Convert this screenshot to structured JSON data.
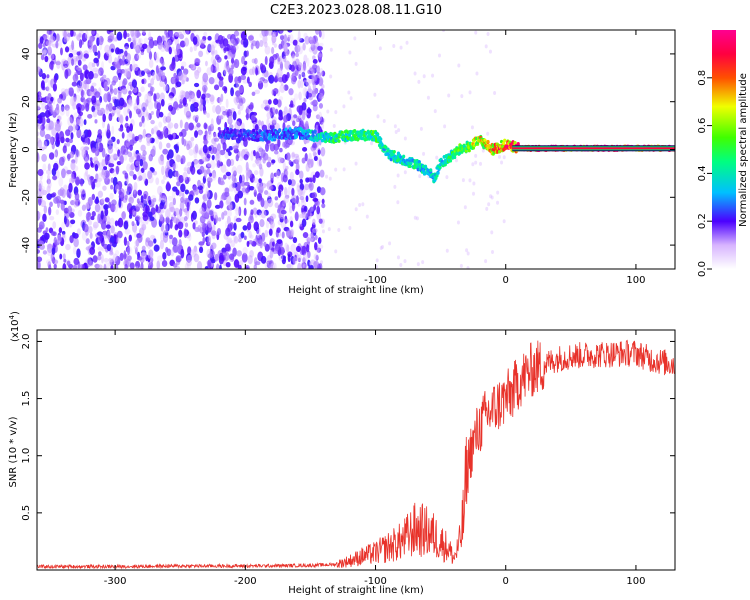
{
  "title": "C2E3.2023.028.08.11.G10",
  "chart_data": [
    {
      "type": "heatmap",
      "xlabel": "Height of straight line (km)",
      "ylabel": "Frequency (Hz)",
      "xlim": [
        -360,
        130
      ],
      "ylim": [
        -50,
        50
      ],
      "x_ticks": [
        -300,
        -200,
        -100,
        0,
        100
      ],
      "y_ticks": [
        -40,
        -20,
        0,
        20,
        40
      ],
      "x_tick_labels": [
        "-300",
        "-200",
        "-100",
        "0",
        "100"
      ],
      "y_tick_labels": [
        "-40",
        "-20",
        "0",
        "20",
        "40"
      ],
      "colorbar": {
        "label": "Normalized spectral amplitude",
        "range": [
          0,
          1
        ],
        "ticks": [
          0.0,
          0.2,
          0.4,
          0.6,
          0.8
        ],
        "tick_labels": [
          "0.0",
          "0.2",
          "0.4",
          "0.6",
          "0.8"
        ]
      },
      "ridge": {
        "x": [
          -220,
          -200,
          -180,
          -160,
          -150,
          -140,
          -130,
          -120,
          -110,
          -100,
          -95,
          -90,
          -80,
          -70,
          -60,
          -55,
          -50,
          -45,
          -40,
          -35,
          -30,
          -25,
          -20,
          -15,
          -10,
          -5,
          0,
          10,
          50,
          100,
          130
        ],
        "y": [
          7,
          6,
          6,
          7,
          6,
          5,
          5,
          6,
          6,
          6,
          2,
          -2,
          -4,
          -6,
          -9,
          -12,
          -6,
          -4,
          -2,
          0,
          1,
          2,
          4,
          2,
          0,
          1,
          2,
          0.5,
          0.5,
          0.5,
          0.5
        ],
        "amplitude": [
          0.25,
          0.25,
          0.3,
          0.3,
          0.4,
          0.45,
          0.5,
          0.5,
          0.5,
          0.55,
          0.45,
          0.45,
          0.45,
          0.45,
          0.4,
          0.4,
          0.45,
          0.5,
          0.55,
          0.6,
          0.65,
          0.7,
          0.75,
          0.75,
          0.8,
          0.85,
          0.9,
          0.95,
          1.0,
          1.0,
          1.0
        ]
      },
      "noise_region_x": [
        -360,
        -150
      ]
    },
    {
      "type": "line",
      "xlabel": "Height of straight line (km)",
      "ylabel": "SNR (10 * v/v)",
      "y_multiplier_label": "(x10",
      "y_multiplier_exp": "4",
      "y_multiplier_close": ")",
      "xlim": [
        -360,
        130
      ],
      "ylim": [
        0,
        21000
      ],
      "x_ticks": [
        -300,
        -200,
        -100,
        0,
        100
      ],
      "y_ticks": [
        5000,
        10000,
        15000,
        20000
      ],
      "x_tick_labels": [
        "-300",
        "-200",
        "-100",
        "0",
        "100"
      ],
      "y_tick_labels": [
        "0.5",
        "1.0",
        "1.5",
        "2.0"
      ],
      "color": "#e8322a",
      "series": [
        {
          "x": [
            -360,
            -300,
            -250,
            -200,
            -150,
            -130,
            -120,
            -110,
            -100,
            -90,
            -80,
            -75,
            -70,
            -65,
            -60,
            -55,
            -50,
            -45,
            -42,
            -40,
            -38,
            -35,
            -32,
            -30,
            -28,
            -25,
            -22,
            -20,
            -15,
            -10,
            -5,
            0,
            5,
            10,
            20,
            30,
            40,
            50,
            60,
            80,
            100,
            110,
            120,
            130
          ],
          "y": [
            300,
            300,
            350,
            350,
            400,
            500,
            800,
            1200,
            1500,
            2000,
            2500,
            3000,
            3500,
            3500,
            3300,
            3000,
            2500,
            2000,
            1500,
            1000,
            1500,
            2500,
            5000,
            8000,
            10000,
            11000,
            12000,
            12500,
            13500,
            14000,
            14500,
            15000,
            15500,
            16500,
            17500,
            18000,
            18500,
            18700,
            18800,
            18900,
            19000,
            18500,
            18200,
            18000
          ]
        }
      ]
    }
  ],
  "colors": {
    "line": "#e8322a",
    "scatter": "#6a1fd8"
  }
}
